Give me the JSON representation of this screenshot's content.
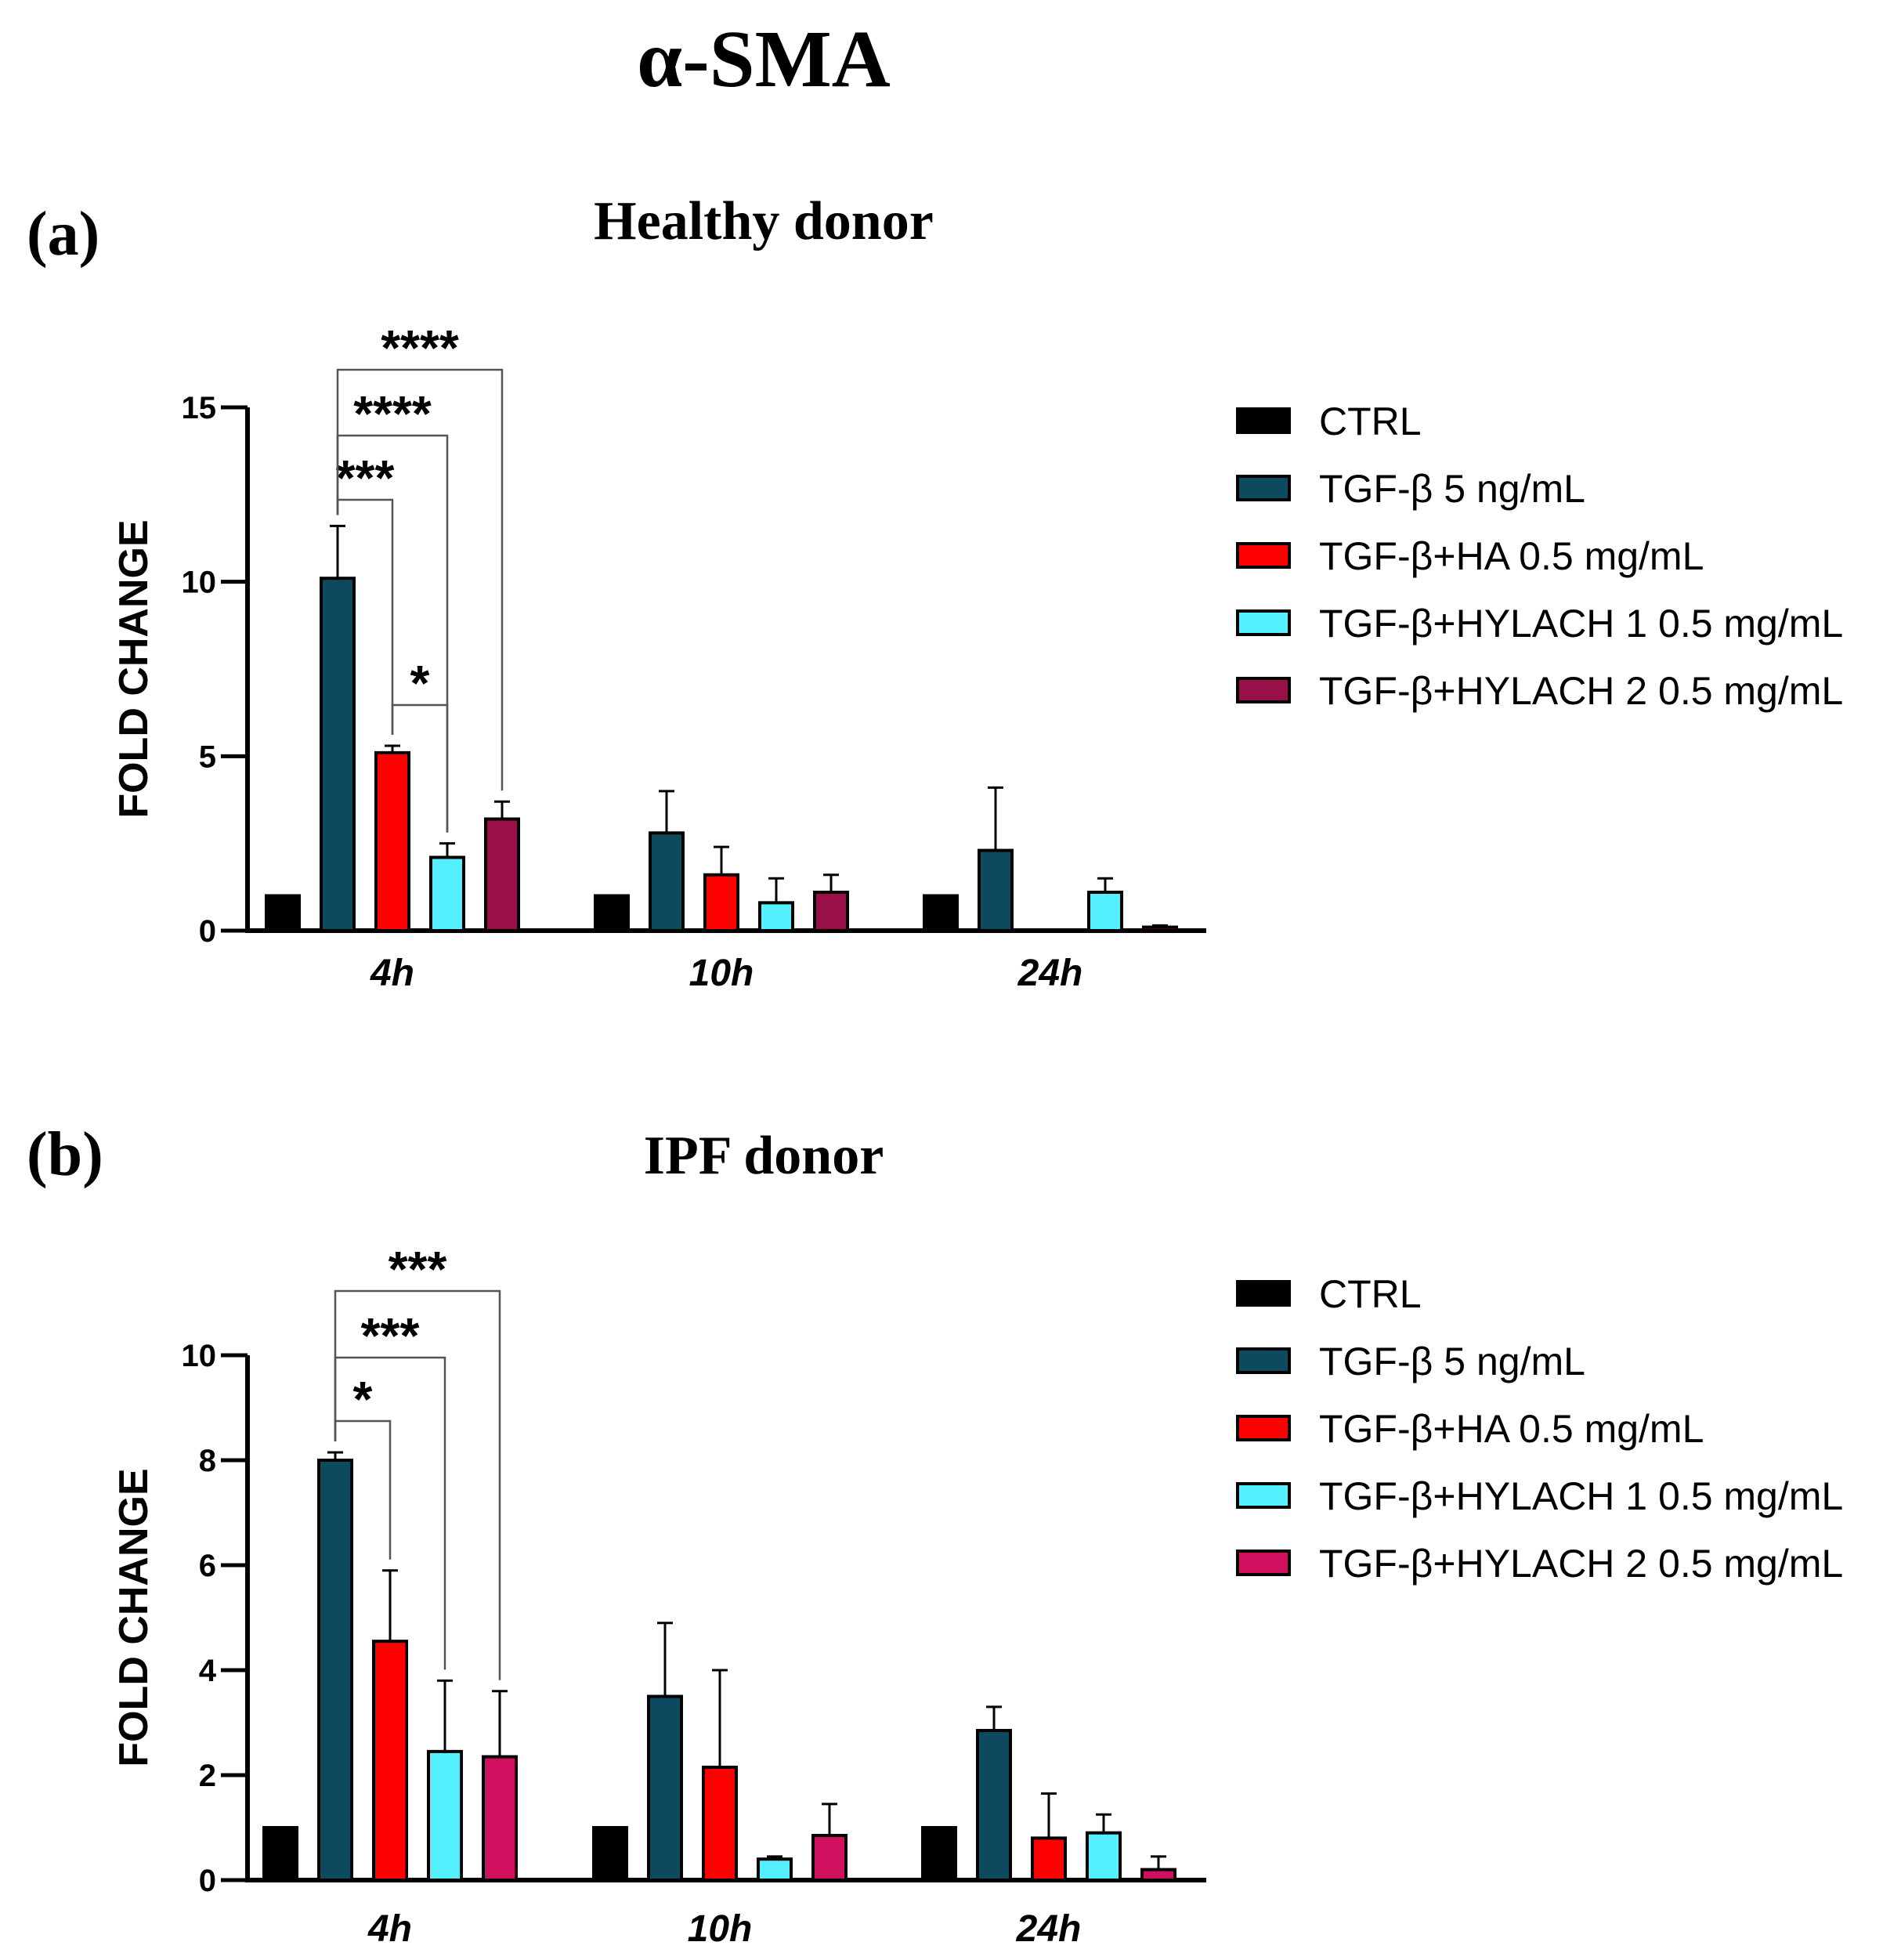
{
  "figure_title": "α-SMA",
  "chart_data": [
    {
      "type": "bar",
      "panel_label": "(a)",
      "title": "Healthy donor",
      "xlabel": "",
      "ylabel": "FOLD CHANGE",
      "ylim": [
        0,
        15
      ],
      "yticks": [
        0,
        5,
        10,
        15
      ],
      "categories": [
        "4h",
        "10h",
        "24h"
      ],
      "series": [
        {
          "name": "CTRL",
          "color": "#000000",
          "values": [
            1,
            1,
            1
          ],
          "errors": [
            0,
            0,
            0
          ]
        },
        {
          "name": "TGF-β 5 ng/mL",
          "color": "#0e4a5f",
          "values": [
            10.1,
            2.8,
            2.3
          ],
          "errors": [
            1.5,
            1.2,
            1.8
          ]
        },
        {
          "name": "TGF-β+HA 0.5 mg/mL",
          "color": "#ff0000",
          "values": [
            5.1,
            1.6,
            0
          ],
          "errors": [
            0.2,
            0.8,
            0
          ]
        },
        {
          "name": "TGF-β+HYLACH 1 0.5 mg/mL",
          "color": "#55f0ff",
          "values": [
            2.1,
            0.8,
            1.1
          ],
          "errors": [
            0.4,
            0.7,
            0.4
          ]
        },
        {
          "name": "TGF-β+HYLACH 2 0.5 mg/mL",
          "color": "#990f48",
          "values": [
            3.2,
            1.1,
            0.1
          ],
          "errors": [
            0.5,
            0.5,
            0.05
          ]
        }
      ],
      "significance": [
        {
          "category": "4h",
          "from": 1,
          "to": 2,
          "label": "***"
        },
        {
          "category": "4h",
          "from": 1,
          "to": 3,
          "label": "****"
        },
        {
          "category": "4h",
          "from": 1,
          "to": 4,
          "label": "****"
        },
        {
          "category": "4h",
          "from": 2,
          "to": 3,
          "label": "*"
        }
      ]
    },
    {
      "type": "bar",
      "panel_label": "(b)",
      "title": "IPF donor",
      "xlabel": "",
      "ylabel": "FOLD CHANGE",
      "ylim": [
        0,
        10
      ],
      "yticks": [
        0,
        2,
        4,
        6,
        8,
        10
      ],
      "categories": [
        "4h",
        "10h",
        "24h"
      ],
      "series": [
        {
          "name": "CTRL",
          "color": "#000000",
          "values": [
            1,
            1,
            1
          ],
          "errors": [
            0,
            0,
            0
          ]
        },
        {
          "name": "TGF-β 5 ng/mL",
          "color": "#0e4a5f",
          "values": [
            8.0,
            3.5,
            2.85
          ],
          "errors": [
            0.15,
            1.4,
            0.45
          ]
        },
        {
          "name": "TGF-β+HA 0.5 mg/mL",
          "color": "#ff0000",
          "values": [
            4.55,
            2.15,
            0.8
          ],
          "errors": [
            1.35,
            1.85,
            0.85
          ]
        },
        {
          "name": "TGF-β+HYLACH 1 0.5 mg/mL",
          "color": "#55f0ff",
          "values": [
            2.45,
            0.4,
            0.9
          ],
          "errors": [
            1.35,
            0.05,
            0.35
          ]
        },
        {
          "name": "TGF-β+HYLACH 2 0.5 mg/mL",
          "color": "#d0105e",
          "values": [
            2.35,
            0.85,
            0.2
          ],
          "errors": [
            1.25,
            0.6,
            0.25
          ]
        }
      ],
      "significance": [
        {
          "category": "4h",
          "from": 1,
          "to": 2,
          "label": "*"
        },
        {
          "category": "4h",
          "from": 1,
          "to": 3,
          "label": "***"
        },
        {
          "category": "4h",
          "from": 1,
          "to": 4,
          "label": "***"
        }
      ]
    }
  ]
}
